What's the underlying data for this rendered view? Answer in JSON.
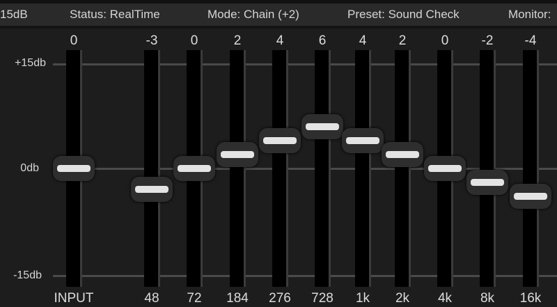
{
  "status_bar": {
    "range": "15dB",
    "status": "Status: RealTime",
    "mode": "Mode: Chain (+2)",
    "preset": "Preset: Sound Check",
    "monitor": "Monitor:"
  },
  "axis": {
    "top": "+15db",
    "mid": "0db",
    "bottom": "-15db",
    "min_db": -15,
    "max_db": 15
  },
  "bands": [
    {
      "label": "INPUT",
      "value": 0
    },
    {
      "label": "48",
      "value": -3
    },
    {
      "label": "72",
      "value": 0
    },
    {
      "label": "184",
      "value": 2
    },
    {
      "label": "276",
      "value": 4
    },
    {
      "label": "728",
      "value": 6
    },
    {
      "label": "1k",
      "value": 4
    },
    {
      "label": "2k",
      "value": 2
    },
    {
      "label": "4k",
      "value": 0
    },
    {
      "label": "8k",
      "value": -2
    },
    {
      "label": "16k",
      "value": -4
    }
  ],
  "colors": {
    "background": "#1d1d1d",
    "status_bar": "#2a2a2a",
    "knob_grip": "#e4e4e4"
  }
}
